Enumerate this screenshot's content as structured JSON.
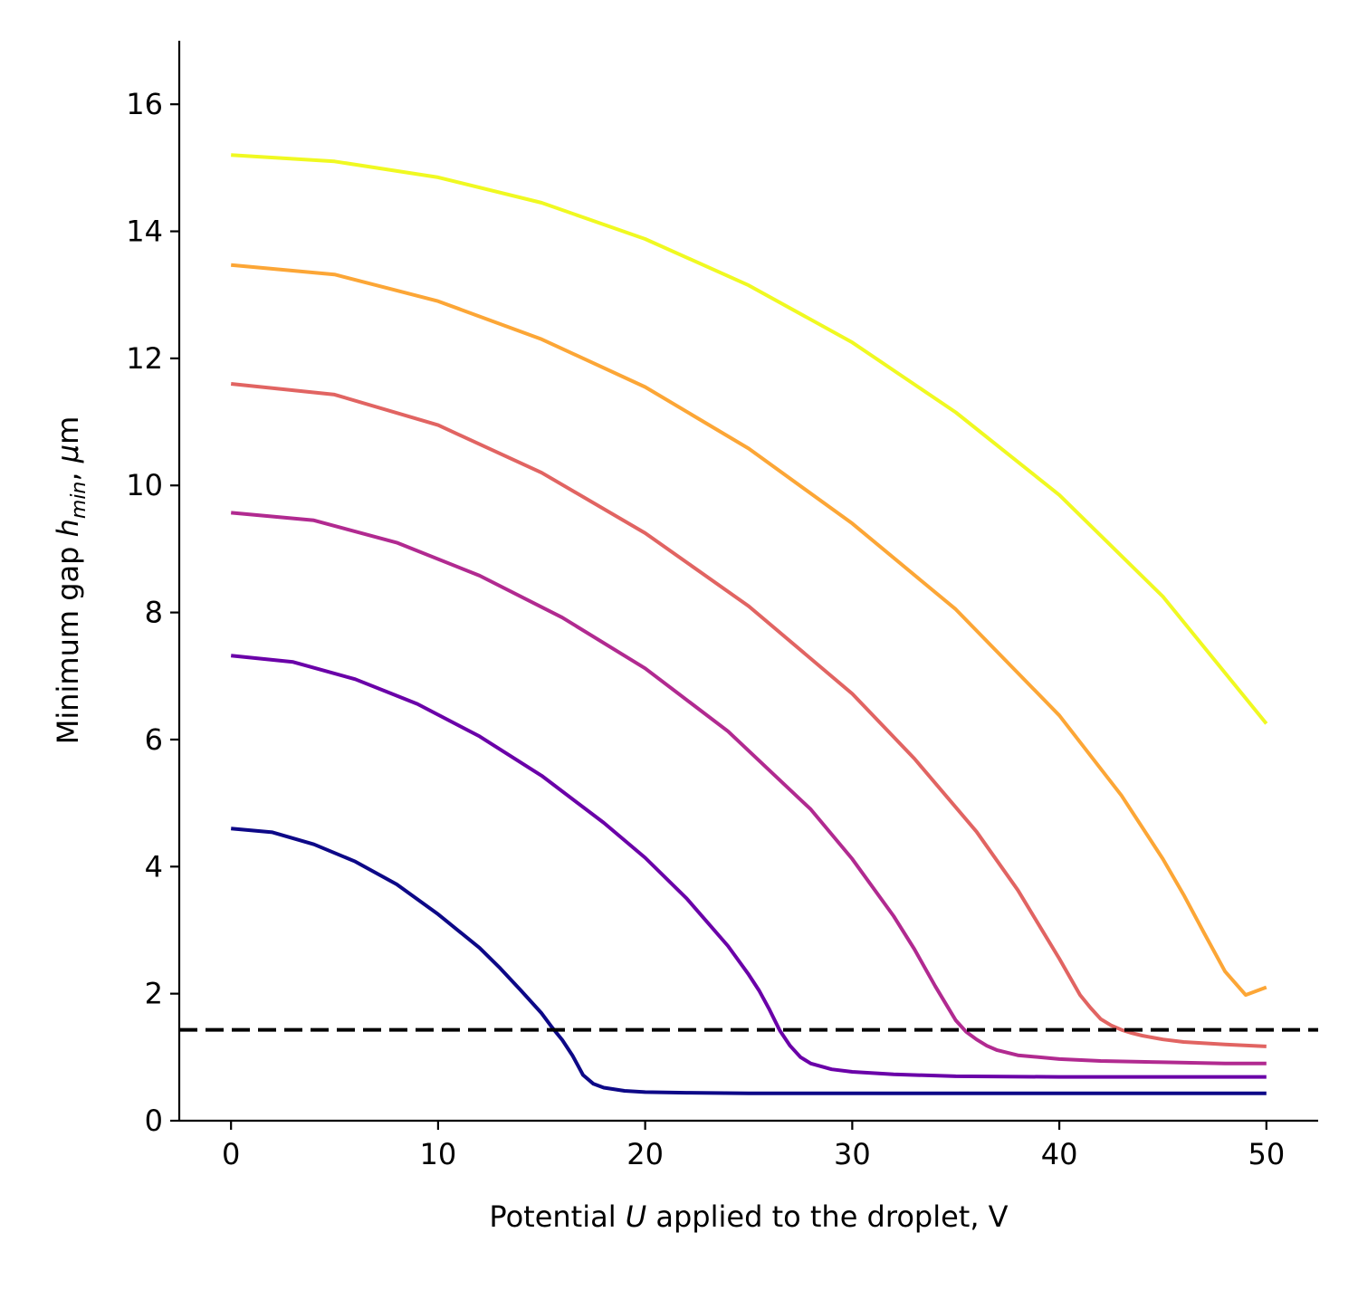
{
  "chart_data": {
    "type": "line",
    "title": "",
    "xlabel": {
      "prefix": "Potential ",
      "symbol": "U",
      "suffix": " applied to the droplet, V"
    },
    "ylabel": {
      "prefix": "Minimum gap ",
      "symbol": "h",
      "subscript": "min",
      "sep": ", ",
      "unit_symbol": "μ",
      "unit_suffix": "m"
    },
    "xlim": [
      -2.5,
      52.5
    ],
    "ylim": [
      0,
      17
    ],
    "xticks": [
      0,
      10,
      20,
      30,
      40,
      50
    ],
    "yticks": [
      0,
      2,
      4,
      6,
      8,
      10,
      12,
      14,
      16
    ],
    "grid": false,
    "legend": "none",
    "reference_line": {
      "y": 1.43,
      "style": "dashed",
      "color": "#000000"
    },
    "series": [
      {
        "color": "#0d0887",
        "x": [
          0,
          2,
          4,
          6,
          8,
          10,
          12,
          13,
          14,
          15,
          15.5,
          16,
          16.5,
          17,
          17.5,
          18,
          19,
          20,
          22,
          25,
          30,
          35,
          40,
          45,
          50
        ],
        "y": [
          4.6,
          4.54,
          4.35,
          4.08,
          3.72,
          3.25,
          2.72,
          2.4,
          2.05,
          1.69,
          1.47,
          1.27,
          1.02,
          0.72,
          0.58,
          0.52,
          0.47,
          0.45,
          0.44,
          0.43,
          0.43,
          0.43,
          0.43,
          0.43,
          0.43
        ]
      },
      {
        "color": "#6a00a8",
        "x": [
          0,
          3,
          6,
          9,
          12,
          15,
          18,
          20,
          22,
          24,
          25,
          25.5,
          26,
          26.5,
          27,
          27.5,
          28,
          29,
          30,
          32,
          35,
          40,
          45,
          50
        ],
        "y": [
          7.32,
          7.22,
          6.95,
          6.56,
          6.05,
          5.43,
          4.69,
          4.14,
          3.5,
          2.75,
          2.3,
          2.05,
          1.75,
          1.42,
          1.18,
          1.0,
          0.9,
          0.81,
          0.77,
          0.73,
          0.7,
          0.69,
          0.69,
          0.69
        ]
      },
      {
        "color": "#b12a90",
        "x": [
          0,
          4,
          8,
          12,
          16,
          20,
          24,
          28,
          30,
          32,
          33,
          34,
          34.5,
          35,
          35.5,
          36,
          36.5,
          37,
          38,
          40,
          42,
          45,
          48,
          50
        ],
        "y": [
          9.57,
          9.45,
          9.1,
          8.58,
          7.92,
          7.12,
          6.13,
          4.9,
          4.12,
          3.22,
          2.7,
          2.12,
          1.85,
          1.58,
          1.4,
          1.28,
          1.18,
          1.11,
          1.03,
          0.97,
          0.94,
          0.92,
          0.9,
          0.9
        ]
      },
      {
        "color": "#e16462",
        "x": [
          0,
          5,
          10,
          15,
          20,
          25,
          30,
          33,
          36,
          38,
          40,
          41,
          41.5,
          42,
          42.5,
          43,
          43.5,
          44,
          45,
          46,
          48,
          50
        ],
        "y": [
          11.6,
          11.43,
          10.95,
          10.2,
          9.25,
          8.1,
          6.72,
          5.7,
          4.55,
          3.63,
          2.55,
          1.98,
          1.78,
          1.6,
          1.5,
          1.43,
          1.38,
          1.34,
          1.28,
          1.24,
          1.2,
          1.17
        ]
      },
      {
        "color": "#fca636",
        "x": [
          0,
          5,
          10,
          15,
          20,
          25,
          30,
          35,
          40,
          43,
          45,
          46,
          47,
          48,
          49,
          50
        ],
        "y": [
          13.47,
          13.32,
          12.9,
          12.3,
          11.55,
          10.58,
          9.4,
          8.05,
          6.38,
          5.12,
          4.12,
          3.56,
          2.95,
          2.35,
          1.98,
          2.1
        ]
      },
      {
        "color": "#f0f921",
        "x": [
          0,
          5,
          10,
          15,
          20,
          25,
          30,
          35,
          40,
          45,
          50
        ],
        "y": [
          15.2,
          15.1,
          14.85,
          14.45,
          13.88,
          13.15,
          12.25,
          11.15,
          9.85,
          8.25,
          6.25
        ]
      }
    ]
  }
}
